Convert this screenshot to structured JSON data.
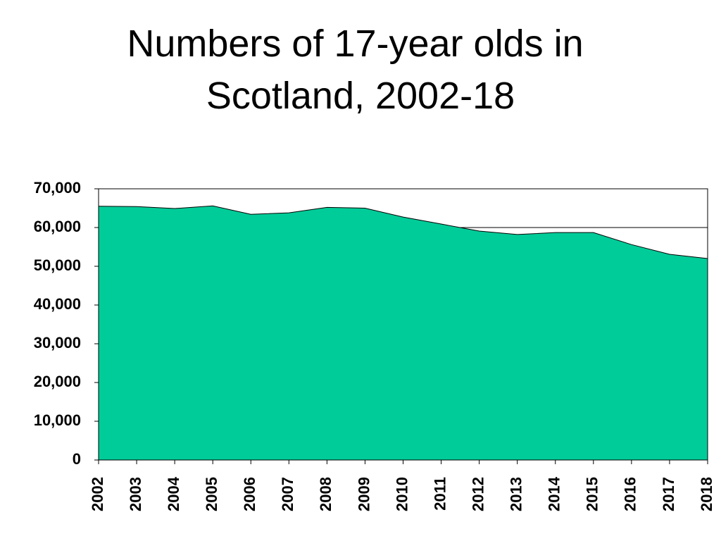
{
  "chart_data": {
    "type": "area",
    "title": "Numbers of 17-year olds in Scotland, 2002-18",
    "categories": [
      "2002",
      "2003",
      "2004",
      "2005",
      "2006",
      "2007",
      "2008",
      "2009",
      "2010",
      "2011",
      "2012",
      "2013",
      "2014",
      "2015",
      "2016",
      "2017",
      "2018"
    ],
    "values": [
      65500,
      65400,
      64900,
      65600,
      63400,
      63800,
      65200,
      65000,
      62700,
      60900,
      59100,
      58200,
      58700,
      58700,
      55600,
      53100,
      52000
    ],
    "color": "#00cc99",
    "ylim": [
      0,
      70000
    ],
    "yticks": [
      0,
      {
        "value": 10000,
        "label": "10,000"
      },
      {
        "value": 20000,
        "label": "20,000"
      },
      {
        "value": 30000,
        "label": "30,000"
      },
      {
        "value": 40000,
        "label": "40,000"
      },
      {
        "value": 50000,
        "label": "50,000"
      },
      {
        "value": 60000,
        "label": "60,000"
      },
      {
        "value": 70000,
        "label": "70,000"
      }
    ],
    "grid": true
  }
}
